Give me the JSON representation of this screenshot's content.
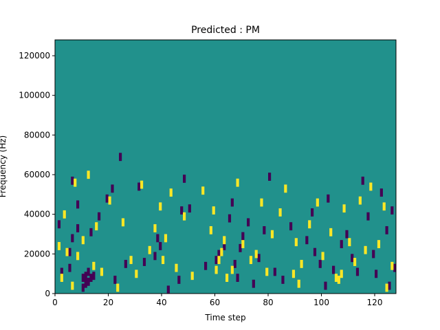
{
  "chart_data": {
    "type": "heatmap",
    "title": "Predicted : PM",
    "xlabel": "Time step",
    "ylabel": "Frequency (Hz)",
    "xlim": [
      0,
      128
    ],
    "ylim": [
      0,
      128000
    ],
    "x_ticks": [
      0,
      20,
      40,
      60,
      80,
      100,
      120
    ],
    "y_ticks": [
      0,
      20000,
      40000,
      60000,
      80000,
      100000,
      120000
    ],
    "n_time_steps": 128,
    "n_freq_bins": 128,
    "colormap": "viridis",
    "levels": {
      "background": {
        "value": 0,
        "color": "#21918c"
      },
      "low": {
        "value": -1,
        "color": "#440154"
      },
      "high": {
        "value": 1,
        "color": "#fde725"
      }
    },
    "low_cells": [
      [
        1,
        36
      ],
      [
        2,
        12
      ],
      [
        5,
        14
      ],
      [
        5,
        22
      ],
      [
        6,
        58
      ],
      [
        6,
        29
      ],
      [
        8,
        46
      ],
      [
        8,
        34
      ],
      [
        10,
        9
      ],
      [
        10,
        4
      ],
      [
        11,
        6
      ],
      [
        11,
        10
      ],
      [
        12,
        7
      ],
      [
        12,
        12
      ],
      [
        13,
        32
      ],
      [
        13,
        9
      ],
      [
        14,
        10
      ],
      [
        16,
        40
      ],
      [
        19,
        49
      ],
      [
        21,
        54
      ],
      [
        22,
        8
      ],
      [
        24,
        70
      ],
      [
        26,
        16
      ],
      [
        31,
        55
      ],
      [
        33,
        17
      ],
      [
        37,
        20
      ],
      [
        38,
        29
      ],
      [
        39,
        25
      ],
      [
        42,
        3
      ],
      [
        46,
        8
      ],
      [
        47,
        43
      ],
      [
        48,
        59
      ],
      [
        50,
        44
      ],
      [
        56,
        15
      ],
      [
        60,
        18
      ],
      [
        61,
        21
      ],
      [
        63,
        25
      ],
      [
        65,
        39
      ],
      [
        66,
        47
      ],
      [
        67,
        16
      ],
      [
        68,
        9
      ],
      [
        69,
        24
      ],
      [
        70,
        30
      ],
      [
        72,
        37
      ],
      [
        74,
        6
      ],
      [
        76,
        19
      ],
      [
        78,
        33
      ],
      [
        80,
        60
      ],
      [
        82,
        12
      ],
      [
        85,
        8
      ],
      [
        88,
        35
      ],
      [
        94,
        28
      ],
      [
        96,
        42
      ],
      [
        97,
        22
      ],
      [
        99,
        16
      ],
      [
        101,
        5
      ],
      [
        102,
        49
      ],
      [
        104,
        13
      ],
      [
        107,
        26
      ],
      [
        109,
        31
      ],
      [
        111,
        19
      ],
      [
        113,
        12
      ],
      [
        115,
        58
      ],
      [
        117,
        40
      ],
      [
        119,
        21
      ],
      [
        120,
        11
      ],
      [
        122,
        52
      ],
      [
        124,
        33
      ],
      [
        125,
        5
      ],
      [
        126,
        43
      ],
      [
        127,
        14
      ]
    ],
    "high_cells": [
      [
        1,
        25
      ],
      [
        2,
        9
      ],
      [
        3,
        41
      ],
      [
        4,
        22
      ],
      [
        6,
        5
      ],
      [
        7,
        57
      ],
      [
        8,
        20
      ],
      [
        10,
        28
      ],
      [
        12,
        61
      ],
      [
        14,
        15
      ],
      [
        15,
        35
      ],
      [
        17,
        12
      ],
      [
        20,
        48
      ],
      [
        23,
        4
      ],
      [
        25,
        37
      ],
      [
        28,
        18
      ],
      [
        30,
        11
      ],
      [
        32,
        56
      ],
      [
        35,
        23
      ],
      [
        37,
        34
      ],
      [
        39,
        45
      ],
      [
        40,
        18
      ],
      [
        41,
        29
      ],
      [
        43,
        52
      ],
      [
        45,
        14
      ],
      [
        48,
        40
      ],
      [
        51,
        10
      ],
      [
        55,
        53
      ],
      [
        58,
        33
      ],
      [
        59,
        43
      ],
      [
        60,
        13
      ],
      [
        61,
        18
      ],
      [
        62,
        22
      ],
      [
        63,
        28
      ],
      [
        64,
        9
      ],
      [
        66,
        13
      ],
      [
        68,
        57
      ],
      [
        70,
        26
      ],
      [
        73,
        18
      ],
      [
        75,
        21
      ],
      [
        77,
        47
      ],
      [
        79,
        12
      ],
      [
        81,
        31
      ],
      [
        84,
        42
      ],
      [
        86,
        54
      ],
      [
        89,
        11
      ],
      [
        90,
        27
      ],
      [
        91,
        6
      ],
      [
        92,
        16
      ],
      [
        95,
        36
      ],
      [
        98,
        47
      ],
      [
        100,
        20
      ],
      [
        103,
        32
      ],
      [
        105,
        9
      ],
      [
        106,
        8
      ],
      [
        107,
        11
      ],
      [
        108,
        44
      ],
      [
        110,
        27
      ],
      [
        112,
        17
      ],
      [
        114,
        48
      ],
      [
        116,
        23
      ],
      [
        118,
        55
      ],
      [
        121,
        26
      ],
      [
        123,
        45
      ],
      [
        124,
        4
      ],
      [
        126,
        15
      ]
    ]
  }
}
